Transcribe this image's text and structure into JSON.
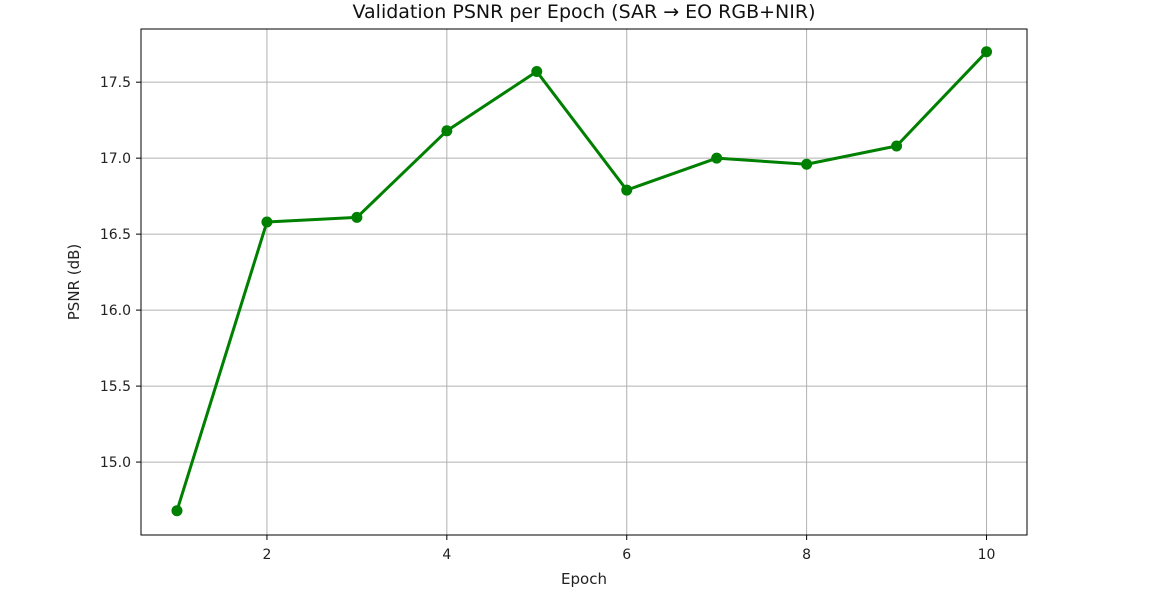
{
  "chart_data": {
    "type": "line",
    "title": "Validation PSNR per Epoch (SAR → EO RGB+NIR)",
    "xlabel": "Epoch",
    "ylabel": "PSNR (dB)",
    "xlim": [
      0.6,
      10.45
    ],
    "ylim": [
      14.52,
      17.85
    ],
    "xticks": [
      2,
      4,
      6,
      8,
      10
    ],
    "xtick_labels": [
      "2",
      "4",
      "6",
      "8",
      "10"
    ],
    "yticks": [
      15.0,
      15.5,
      16.0,
      16.5,
      17.0,
      17.5
    ],
    "ytick_labels": [
      "15.0",
      "15.5",
      "16.0",
      "16.5",
      "17.0",
      "17.5"
    ],
    "grid": true,
    "x": [
      1,
      2,
      3,
      4,
      5,
      6,
      7,
      8,
      9,
      10
    ],
    "series": [
      {
        "values": [
          14.68,
          16.58,
          16.61,
          17.18,
          17.57,
          16.79,
          17.0,
          16.96,
          17.08,
          17.7
        ],
        "color": "#008000",
        "marker": "circle"
      }
    ]
  }
}
